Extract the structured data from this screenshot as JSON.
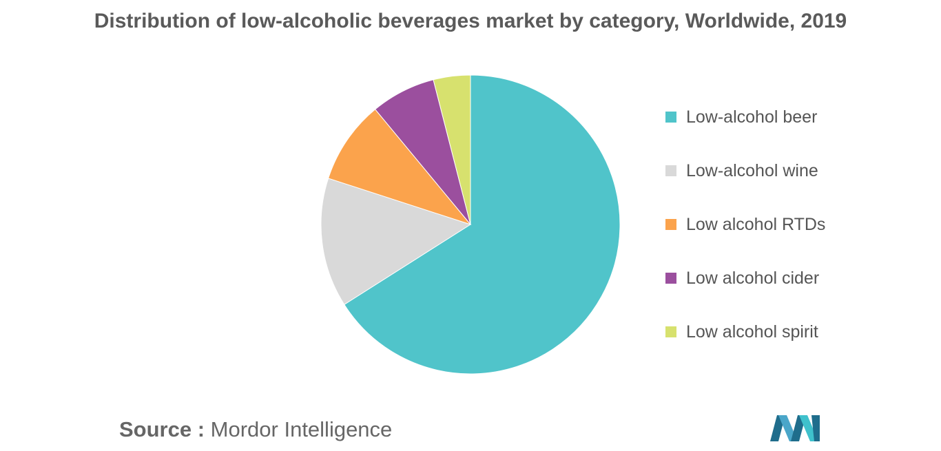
{
  "chart_data": {
    "type": "pie",
    "title": "Distribution of low-alcoholic beverages market by category, Worldwide, 2019",
    "legend_position": "right",
    "slices": [
      {
        "name": "Low-alcohol beer",
        "value": 66,
        "color": "#50c4ca"
      },
      {
        "name": "Low-alcohol wine",
        "value": 14,
        "color": "#d9d9d9"
      },
      {
        "name": "Low alcohol RTDs",
        "value": 9,
        "color": "#fba34c"
      },
      {
        "name": "Low alcohol cider",
        "value": 7,
        "color": "#9b4f9e"
      },
      {
        "name": "Low alcohol spirit",
        "value": 4,
        "color": "#d7e16e"
      }
    ]
  },
  "footer": {
    "source_prefix": "Source :",
    "source_name": "Mordor Intelligence",
    "logo_icon": "mordor-intelligence-logo-icon"
  }
}
